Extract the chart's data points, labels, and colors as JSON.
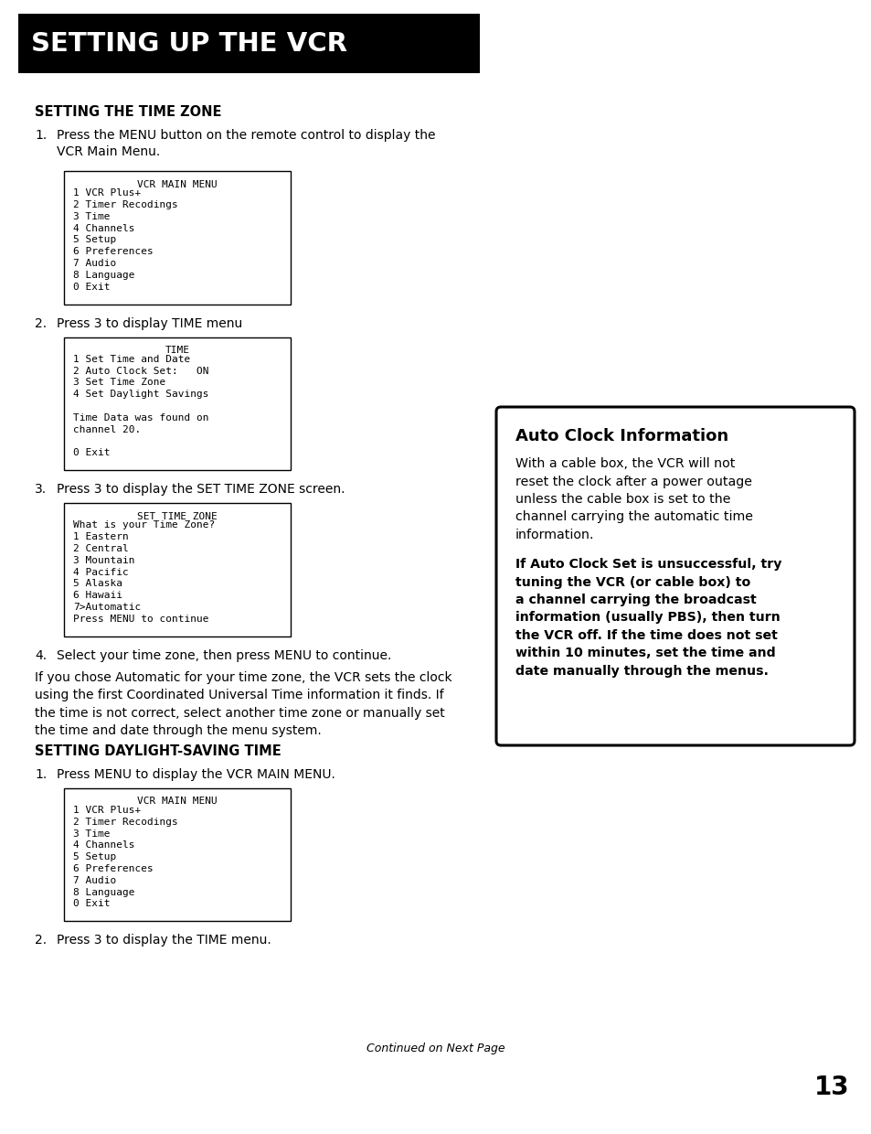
{
  "page_bg": "#ffffff",
  "header_bg": "#000000",
  "header_text": "SETTING UP THE VCR",
  "header_text_color": "#ffffff",
  "section1_title": "SETTING THE TIME ZONE",
  "section1_steps": [
    "Press the MENU button on the remote control to display the\nVCR Main Menu.",
    "Press 3 to display TIME menu",
    "Press 3 to display the SET TIME ZONE screen.",
    "Select your time zone, then press MENU to continue."
  ],
  "section1_paragraph": "If you chose Automatic for your time zone, the VCR sets the clock\nusing the first Coordinated Universal Time information it finds. If\nthe time is not correct, select another time zone or manually set\nthe time and date through the menu system.",
  "menu1_title": "VCR MAIN MENU",
  "menu1_lines": [
    "1 VCR Plus+",
    "2 Timer Recodings",
    "3 Time",
    "4 Channels",
    "5 Setup",
    "6 Preferences",
    "7 Audio",
    "8 Language",
    "0 Exit"
  ],
  "menu2_title": "TIME",
  "menu2_lines": [
    "1 Set Time and Date",
    "2 Auto Clock Set:   ON",
    "3 Set Time Zone",
    "4 Set Daylight Savings",
    "",
    "Time Data was found on",
    "channel 20.",
    "",
    "0 Exit"
  ],
  "menu3_title": "SET TIME ZONE",
  "menu3_lines": [
    "What is your Time Zone?",
    "1 Eastern",
    "2 Central",
    "3 Mountain",
    "4 Pacific",
    "5 Alaska",
    "6 Hawaii",
    "7>Automatic",
    "Press MENU to continue"
  ],
  "section2_title": "SETTING DAYLIGHT-SAVING TIME",
  "section2_steps": [
    "Press MENU to display the VCR MAIN MENU.",
    "Press 3 to display the TIME menu."
  ],
  "menu4_title": "VCR MAIN MENU",
  "menu4_lines": [
    "1 VCR Plus+",
    "2 Timer Recodings",
    "3 Time",
    "4 Channels",
    "5 Setup",
    "6 Preferences",
    "7 Audio",
    "8 Language",
    "0 Exit"
  ],
  "sidebar_title": "Auto Clock Information",
  "sidebar_para1": "With a cable box, the VCR will not\nreset the clock after a power outage\nunless the cable box is set to the\nchannel carrying the automatic time\ninformation.",
  "sidebar_para2": "If Auto Clock Set is unsuccessful, try\ntuning the VCR (or cable box) to\na channel carrying the broadcast\ninformation (usually PBS), then turn\nthe VCR off. If the time does not set\nwithin 10 minutes, set the time and\ndate manually through the menus.",
  "footer_text": "Continued on Next Page",
  "page_number": "13"
}
